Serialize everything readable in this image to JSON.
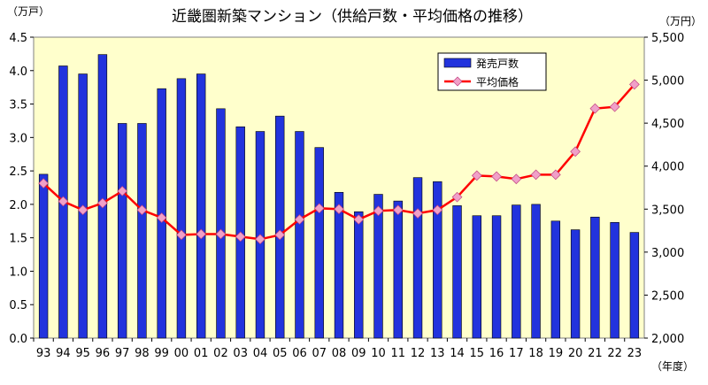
{
  "chart_data": {
    "type": "bar+line",
    "title": "近畿圏新築マンション（供給戸数・平均価格の推移）",
    "y_left_unit": "（万戸）",
    "y_right_unit": "（万円）",
    "x_unit": "（年度）",
    "categories": [
      "93",
      "94",
      "95",
      "96",
      "97",
      "98",
      "99",
      "00",
      "01",
      "02",
      "03",
      "04",
      "05",
      "06",
      "07",
      "08",
      "09",
      "10",
      "11",
      "12",
      "13",
      "14",
      "15",
      "16",
      "17",
      "18",
      "19",
      "20",
      "21",
      "22",
      "23"
    ],
    "y_left_ticks": [
      "0.0",
      "0.5",
      "1.0",
      "1.5",
      "2.0",
      "2.5",
      "3.0",
      "3.5",
      "4.0",
      "4.5"
    ],
    "y_right_ticks": [
      "2,000",
      "2,500",
      "3,000",
      "3,500",
      "4,000",
      "4,500",
      "5,000",
      "5,500"
    ],
    "ylim_left": [
      0,
      4.5
    ],
    "ylim_right": [
      2000,
      5500
    ],
    "series": [
      {
        "name": "発売戸数",
        "type": "bar",
        "axis": "left",
        "color": "#2233dd",
        "values": [
          2.45,
          4.07,
          3.95,
          4.24,
          3.21,
          3.21,
          3.73,
          3.88,
          3.95,
          3.43,
          3.16,
          3.09,
          3.32,
          3.09,
          2.85,
          2.18,
          1.89,
          2.15,
          2.05,
          2.4,
          2.34,
          1.98,
          1.83,
          1.83,
          1.99,
          2.0,
          1.75,
          1.62,
          1.81,
          1.73,
          1.58
        ]
      },
      {
        "name": "平均価格",
        "type": "line",
        "axis": "right",
        "color": "#ff0000",
        "marker_color": "#f0a0c8",
        "values": [
          3800,
          3590,
          3490,
          3570,
          3710,
          3490,
          3400,
          3200,
          3210,
          3210,
          3180,
          3150,
          3200,
          3380,
          3510,
          3500,
          3380,
          3480,
          3490,
          3450,
          3490,
          3640,
          3890,
          3880,
          3850,
          3900,
          3900,
          4170,
          4670,
          4690,
          4950
        ]
      }
    ],
    "plot_background": "#ffffcc",
    "legend_position": "top-right (inside plot)"
  }
}
